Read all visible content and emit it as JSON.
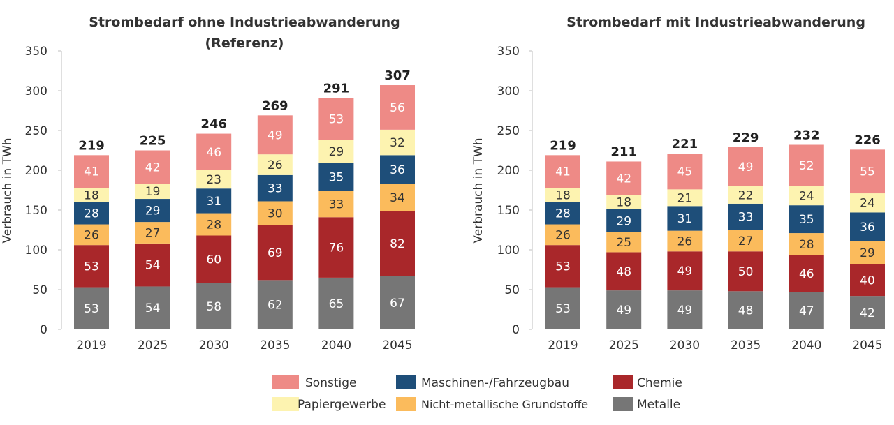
{
  "colors": {
    "Metalle": "#767676",
    "Chemie": "#a9272a",
    "Nicht-metallische Grundstoffe": "#fbbb5c",
    "Maschinen-/Fahrzeugbau": "#1e4e79",
    "Papiergewerbe": "#fdf3b0",
    "Sonstige": "#ee8a86"
  },
  "label_colors": {
    "Metalle": "#ffffff",
    "Chemie": "#ffffff",
    "Nicht-metallische Grundstoffe": "#333333",
    "Maschinen-/Fahrzeugbau": "#ffffff",
    "Papiergewerbe": "#333333",
    "Sonstige": "#ffffff"
  },
  "legend": {
    "items": [
      "Sonstige",
      "Maschinen-/Fahrzeugbau",
      "Chemie",
      "Papiergewerbe",
      "Nicht-metallische Grundstoffe",
      "Metalle"
    ]
  },
  "chart_data": [
    {
      "type": "bar",
      "stacked": true,
      "title": "Strombedarf  ohne Industrieabwanderung",
      "subtitle": "(Referenz)",
      "ylabel": "Verbrauch in TWh",
      "xlabel": "",
      "ylim": [
        0,
        350
      ],
      "yticks": [
        0,
        50,
        100,
        150,
        200,
        250,
        300,
        350
      ],
      "categories": [
        "2019",
        "2025",
        "2030",
        "2035",
        "2040",
        "2045"
      ],
      "totals": [
        219,
        225,
        246,
        269,
        291,
        307
      ],
      "series": [
        {
          "name": "Metalle",
          "values": [
            53,
            54,
            58,
            62,
            65,
            67
          ]
        },
        {
          "name": "Chemie",
          "values": [
            53,
            54,
            60,
            69,
            76,
            82
          ]
        },
        {
          "name": "Nicht-metallische Grundstoffe",
          "values": [
            26,
            27,
            28,
            30,
            33,
            34
          ]
        },
        {
          "name": "Maschinen-/Fahrzeugbau",
          "values": [
            28,
            29,
            31,
            33,
            35,
            36
          ]
        },
        {
          "name": "Papiergewerbe",
          "values": [
            18,
            19,
            23,
            26,
            29,
            32
          ]
        },
        {
          "name": "Sonstige",
          "values": [
            41,
            42,
            46,
            49,
            53,
            56
          ]
        }
      ],
      "legend": "bottom-center",
      "grid": false
    },
    {
      "type": "bar",
      "stacked": true,
      "title": "Strombedarf  mit Industrieabwanderung",
      "subtitle": "",
      "ylabel": "Verbrauch in TWh",
      "xlabel": "",
      "ylim": [
        0,
        350
      ],
      "yticks": [
        0,
        50,
        100,
        150,
        200,
        250,
        300,
        350
      ],
      "categories": [
        "2019",
        "2025",
        "2030",
        "2035",
        "2040",
        "2045"
      ],
      "totals": [
        219,
        211,
        221,
        229,
        232,
        226
      ],
      "series": [
        {
          "name": "Metalle",
          "values": [
            53,
            49,
            49,
            48,
            47,
            42
          ]
        },
        {
          "name": "Chemie",
          "values": [
            53,
            48,
            49,
            50,
            46,
            40
          ]
        },
        {
          "name": "Nicht-metallische Grundstoffe",
          "values": [
            26,
            25,
            26,
            27,
            28,
            29
          ]
        },
        {
          "name": "Maschinen-/Fahrzeugbau",
          "values": [
            28,
            29,
            31,
            33,
            35,
            36
          ]
        },
        {
          "name": "Papiergewerbe",
          "values": [
            18,
            18,
            21,
            22,
            24,
            24
          ]
        },
        {
          "name": "Sonstige",
          "values": [
            41,
            42,
            45,
            49,
            52,
            55
          ]
        }
      ],
      "legend": "bottom-center",
      "grid": false
    }
  ]
}
